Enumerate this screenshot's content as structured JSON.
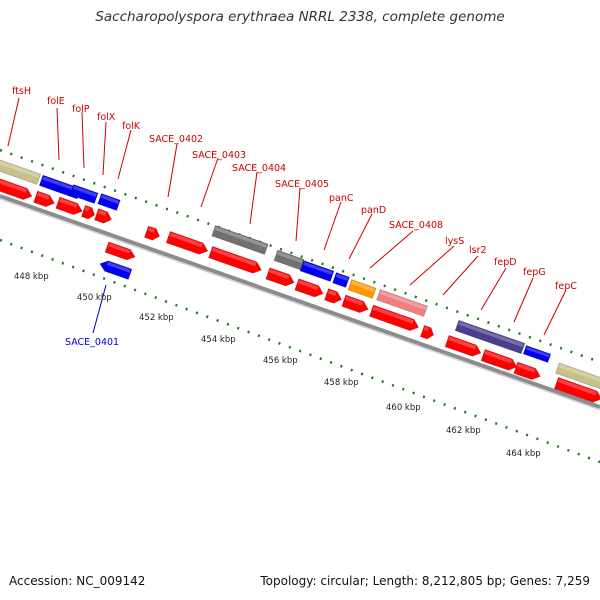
{
  "title": "Saccharopolyspora erythraea NRRL 2338, complete genome",
  "footer": {
    "accession": "Accession: NC_009142",
    "summary": "Topology: circular; Length: 8,212,805 bp; Genes: 7,259"
  },
  "colors": {
    "cds": "#ff0000",
    "blue": "#0000ee",
    "olive": "#c8c08a",
    "gray": "#707070",
    "orange": "#ff9900",
    "pink": "#f08080",
    "slate": "#4a3f8f",
    "label_red": "#cc0000",
    "label_blue": "#0000cc",
    "tick": "#1a7a1a",
    "backbone": "#8c8c8c"
  },
  "scale": {
    "unit": "kbp",
    "labels": [
      "448 kbp",
      "450 kbp",
      "452 kbp",
      "454 kbp",
      "456 kbp",
      "458 kbp",
      "460 kbp",
      "462 kbp",
      "464 kbp"
    ]
  },
  "gene_labels_forward": [
    "ftsH",
    "folE",
    "folP",
    "folX",
    "folK",
    "SACE_0402",
    "SACE_0403",
    "SACE_0404",
    "SACE_0405",
    "panC",
    "panD",
    "SACE_0408",
    "lysS",
    "lsr2",
    "fepD",
    "fepG",
    "fepC"
  ],
  "gene_labels_reverse": [
    "SACE_0401"
  ],
  "features": [
    {
      "track": "upper",
      "color": "olive",
      "shape": "box"
    },
    {
      "track": "upper",
      "color": "blue",
      "shape": "box"
    },
    {
      "track": "upper",
      "color": "blue",
      "shape": "box"
    },
    {
      "track": "upper",
      "color": "blue",
      "shape": "box"
    },
    {
      "track": "upper",
      "color": "gray",
      "shape": "box"
    },
    {
      "track": "upper",
      "color": "gray",
      "shape": "box"
    },
    {
      "track": "upper",
      "color": "blue",
      "shape": "box"
    },
    {
      "track": "upper",
      "color": "blue",
      "shape": "box"
    },
    {
      "track": "upper",
      "color": "orange",
      "shape": "box"
    },
    {
      "track": "upper",
      "color": "pink",
      "shape": "box"
    },
    {
      "track": "upper",
      "color": "slate",
      "shape": "box"
    },
    {
      "track": "upper",
      "color": "blue",
      "shape": "box"
    },
    {
      "track": "upper",
      "color": "olive",
      "shape": "box"
    },
    {
      "track": "lower",
      "color": "cds",
      "shape": "arrow"
    },
    {
      "track": "lower",
      "color": "cds",
      "shape": "arrow"
    },
    {
      "track": "lower",
      "color": "cds",
      "shape": "arrow"
    },
    {
      "track": "lower",
      "color": "cds",
      "shape": "arrow"
    },
    {
      "track": "lower",
      "color": "cds",
      "shape": "arrow"
    },
    {
      "track": "lower",
      "color": "cds",
      "shape": "arrow"
    },
    {
      "track": "lower",
      "color": "cds",
      "shape": "arrow"
    },
    {
      "track": "lower",
      "color": "cds",
      "shape": "arrow"
    },
    {
      "track": "lower",
      "color": "cds",
      "shape": "arrow"
    },
    {
      "track": "lower",
      "color": "cds",
      "shape": "arrow"
    },
    {
      "track": "lower",
      "color": "cds",
      "shape": "arrow"
    },
    {
      "track": "lower",
      "color": "cds",
      "shape": "arrow"
    },
    {
      "track": "lower",
      "color": "cds",
      "shape": "arrow"
    },
    {
      "track": "lower",
      "color": "cds",
      "shape": "arrow"
    },
    {
      "track": "lower",
      "color": "cds",
      "shape": "arrow"
    },
    {
      "track": "lower",
      "color": "cds",
      "shape": "arrow"
    },
    {
      "track": "lower",
      "color": "cds",
      "shape": "arrow"
    },
    {
      "track": "lower",
      "color": "cds",
      "shape": "arrow"
    },
    {
      "track": "lower",
      "color": "cds",
      "shape": "arrow"
    },
    {
      "track": "reverse",
      "color": "blue",
      "shape": "arrow-left"
    },
    {
      "track": "reverse",
      "color": "orange",
      "shape": "box"
    }
  ]
}
